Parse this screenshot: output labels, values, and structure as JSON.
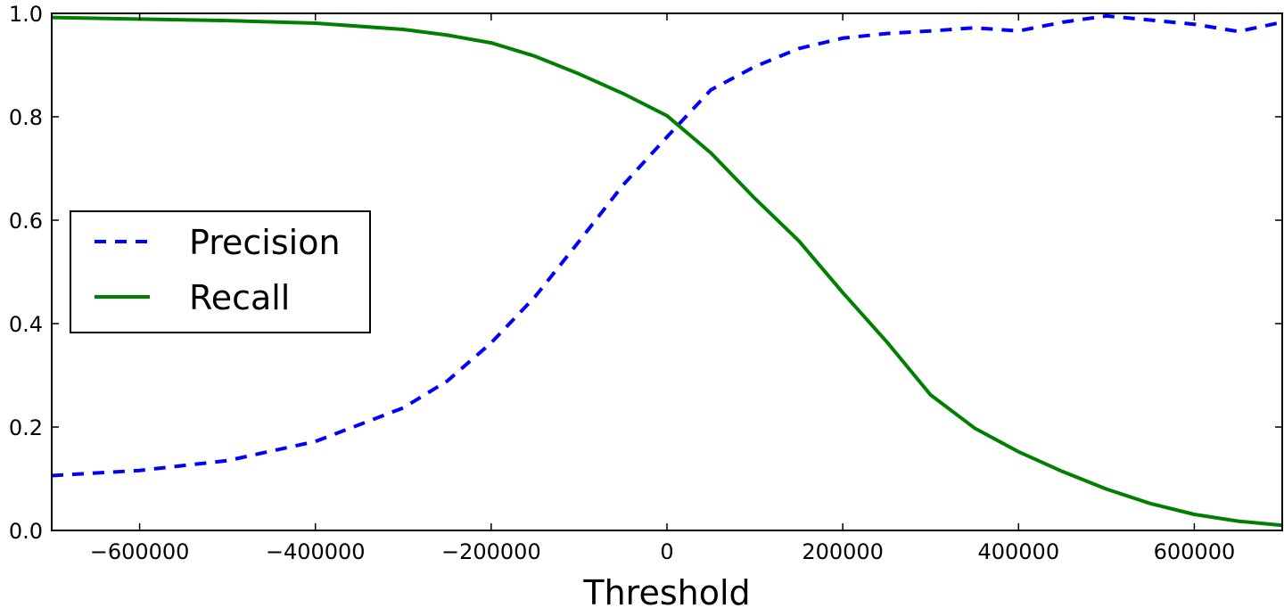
{
  "chart_data": {
    "type": "line",
    "xlabel": "Threshold",
    "ylabel": "",
    "xlim": [
      -700000,
      700000
    ],
    "ylim": [
      0.0,
      1.0
    ],
    "xticks": [
      -600000,
      -400000,
      -200000,
      0,
      200000,
      400000,
      600000
    ],
    "xtick_labels": [
      "−600000",
      "−400000",
      "−200000",
      "0",
      "200000",
      "400000",
      "600000"
    ],
    "yticks": [
      0.0,
      0.2,
      0.4,
      0.6,
      0.8,
      1.0
    ],
    "ytick_labels": [
      "0.0",
      "0.2",
      "0.4",
      "0.6",
      "0.8",
      "1.0"
    ],
    "grid": false,
    "legend_position": "center-left",
    "series": [
      {
        "name": "Precision",
        "color": "#0000ff",
        "style": "dashed",
        "x": [
          -700000,
          -600000,
          -500000,
          -400000,
          -300000,
          -250000,
          -200000,
          -150000,
          -100000,
          -50000,
          0,
          50000,
          100000,
          150000,
          200000,
          250000,
          300000,
          350000,
          400000,
          450000,
          500000,
          550000,
          600000,
          650000,
          700000
        ],
        "y": [
          0.106,
          0.116,
          0.135,
          0.172,
          0.237,
          0.289,
          0.363,
          0.452,
          0.559,
          0.668,
          0.761,
          0.852,
          0.897,
          0.932,
          0.952,
          0.961,
          0.966,
          0.972,
          0.966,
          0.983,
          0.995,
          0.987,
          0.979,
          0.965,
          0.983
        ]
      },
      {
        "name": "Recall",
        "color": "#008000",
        "style": "solid",
        "x": [
          -700000,
          -600000,
          -500000,
          -400000,
          -300000,
          -250000,
          -200000,
          -150000,
          -100000,
          -50000,
          0,
          50000,
          100000,
          150000,
          200000,
          250000,
          300000,
          350000,
          400000,
          450000,
          500000,
          550000,
          600000,
          650000,
          700000
        ],
        "y": [
          0.992,
          0.989,
          0.986,
          0.981,
          0.969,
          0.958,
          0.943,
          0.917,
          0.883,
          0.845,
          0.802,
          0.73,
          0.642,
          0.56,
          0.46,
          0.365,
          0.262,
          0.198,
          0.152,
          0.114,
          0.08,
          0.052,
          0.031,
          0.018,
          0.01
        ]
      }
    ]
  }
}
